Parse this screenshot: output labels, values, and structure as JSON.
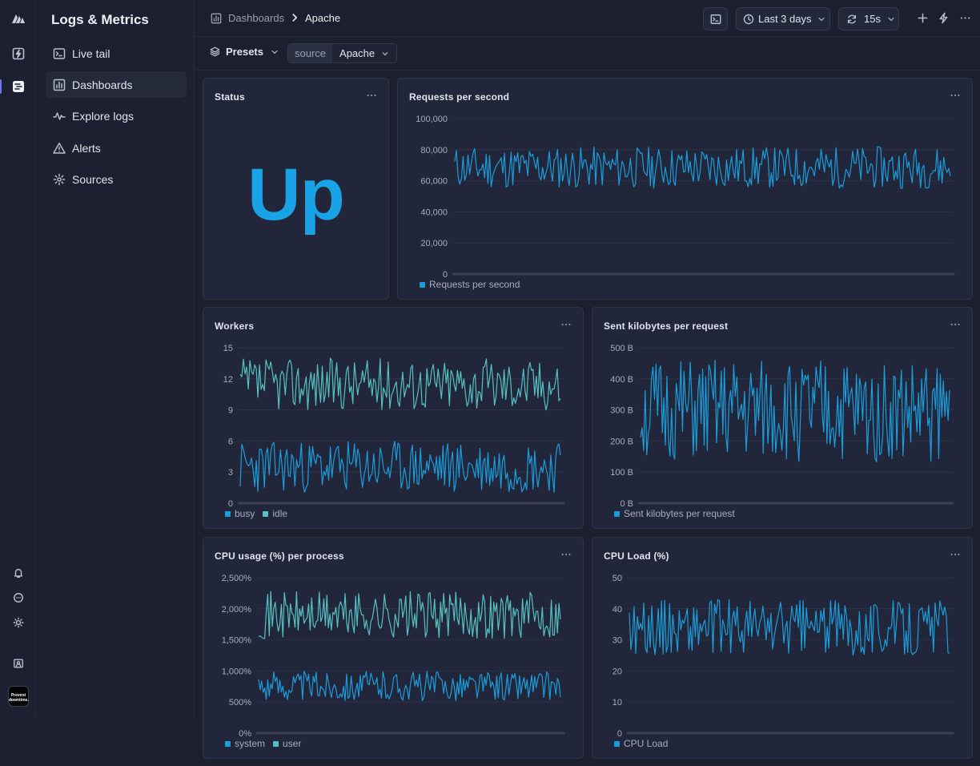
{
  "sidebar": {
    "title": "Logs & Metrics",
    "items": [
      {
        "label": "Live tail",
        "icon": "terminal-icon"
      },
      {
        "label": "Dashboards",
        "icon": "bar-chart-icon",
        "active": true
      },
      {
        "label": "Explore logs",
        "icon": "activity-icon"
      },
      {
        "label": "Alerts",
        "icon": "warning-triangle-icon"
      },
      {
        "label": "Sources",
        "icon": "sources-icon"
      }
    ],
    "avatar_text": "Prevent downtime."
  },
  "header": {
    "breadcrumb_root": "Dashboards",
    "breadcrumb_current": "Apache",
    "time_range": "Last 3 days",
    "refresh_interval": "15s"
  },
  "filters": {
    "presets_label": "Presets",
    "variable_key": "source",
    "variable_value": "Apache"
  },
  "panels": {
    "status": {
      "title": "Status",
      "value": "Up",
      "value_color": "#1aa2e6"
    },
    "rps": {
      "title": "Requests per second"
    },
    "workers": {
      "title": "Workers"
    },
    "sent": {
      "title": "Sent kilobytes per request"
    },
    "cpu": {
      "title": "CPU usage (%) per process"
    },
    "load": {
      "title": "CPU Load (%)"
    }
  },
  "colors": {
    "blue": "#1a9ddb",
    "teal": "#56c1c4"
  },
  "chart_data": [
    {
      "id": "rps",
      "type": "line",
      "title": "Requests per second",
      "ylim": [
        0,
        100000
      ],
      "yticks": [
        "100,000",
        "80,000",
        "60,000",
        "40,000",
        "20,000",
        "0"
      ],
      "series": [
        {
          "name": "Requests per second",
          "color": "#1a9ddb",
          "range": [
            55000,
            82000
          ],
          "n": 300,
          "seed": 11
        }
      ]
    },
    {
      "id": "workers",
      "type": "line",
      "title": "Workers",
      "ylim": [
        0,
        15
      ],
      "yticks": [
        "15",
        "12",
        "9",
        "6",
        "3",
        "0"
      ],
      "series": [
        {
          "name": "busy",
          "color": "#1a9ddb",
          "range": [
            1,
            6
          ],
          "n": 200,
          "seed": 23
        },
        {
          "name": "idle",
          "color": "#56c1c4",
          "range": [
            9,
            14
          ],
          "n": 200,
          "seed": 37
        }
      ]
    },
    {
      "id": "sent",
      "type": "line",
      "title": "Sent kilobytes per request",
      "ylim": [
        0,
        500
      ],
      "yticks": [
        "500 B",
        "400 B",
        "300 B",
        "200 B",
        "100 B",
        "0 B"
      ],
      "series": [
        {
          "name": "Sent kilobytes per request",
          "color": "#1a9ddb",
          "range": [
            130,
            460
          ],
          "n": 200,
          "seed": 51
        }
      ]
    },
    {
      "id": "cpu",
      "type": "line",
      "title": "CPU usage (%) per process",
      "ylim": [
        0,
        2500
      ],
      "yticks": [
        "2,500%",
        "2,000%",
        "1,500%",
        "1,000%",
        "500%",
        "0%"
      ],
      "series": [
        {
          "name": "system",
          "color": "#1a9ddb",
          "range": [
            520,
            1000
          ],
          "n": 200,
          "seed": 63
        },
        {
          "name": "user",
          "color": "#56c1c4",
          "range": [
            1520,
            2280
          ],
          "n": 200,
          "seed": 71
        }
      ]
    },
    {
      "id": "load",
      "type": "line",
      "title": "CPU Load (%)",
      "ylim": [
        0,
        50
      ],
      "yticks": [
        "50",
        "40",
        "30",
        "20",
        "10",
        "0"
      ],
      "series": [
        {
          "name": "CPU Load",
          "color": "#1a9ddb",
          "range": [
            25,
            43
          ],
          "n": 200,
          "seed": 89
        }
      ]
    }
  ]
}
